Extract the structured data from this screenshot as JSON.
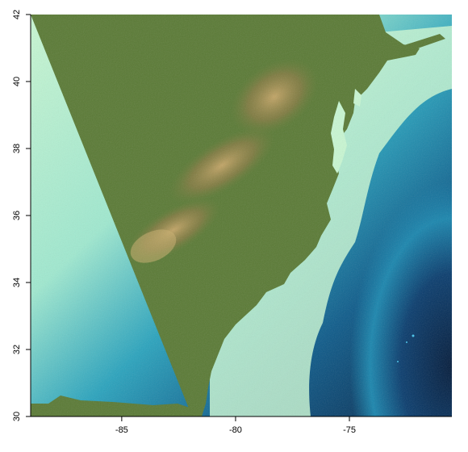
{
  "map": {
    "type": "raster-relief-bathymetry",
    "x_axis": {
      "ticks": [
        {
          "value": -85,
          "label": "-85"
        },
        {
          "value": -80,
          "label": "-80"
        },
        {
          "value": -75,
          "label": "-75"
        }
      ],
      "range": [
        -89.0,
        -70.5
      ]
    },
    "y_axis": {
      "ticks": [
        {
          "value": 30,
          "label": "30"
        },
        {
          "value": 32,
          "label": "32"
        },
        {
          "value": 34,
          "label": "34"
        },
        {
          "value": 36,
          "label": "36"
        },
        {
          "value": 38,
          "label": "38"
        },
        {
          "value": 40,
          "label": "40"
        },
        {
          "value": 42,
          "label": "42"
        }
      ],
      "range": [
        30,
        42
      ]
    },
    "colors": {
      "land_low": "#5a7a35",
      "land_mid": "#6f7d3b",
      "land_high": "#b49a5b",
      "shelf": "#c8f6d2",
      "shelf_edge": "#8fe0c8",
      "slope": "#1f9bb6",
      "deep": "#08325e",
      "abyss": "#062448"
    }
  }
}
